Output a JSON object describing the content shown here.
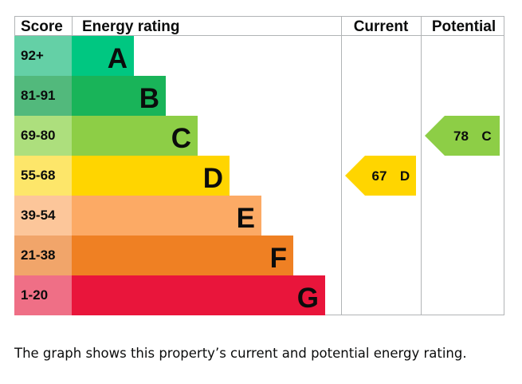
{
  "chart_data": {
    "type": "bar",
    "headers": {
      "score": "Score",
      "rating": "Energy rating",
      "current": "Current",
      "potential": "Potential"
    },
    "bands": [
      {
        "range": "92+",
        "letter": "A",
        "color": "#00c781",
        "score_bg": "#64d0a6",
        "value": 92
      },
      {
        "range": "81-91",
        "letter": "B",
        "color": "#19b459",
        "score_bg": "#52b97c",
        "value": 81
      },
      {
        "range": "69-80",
        "letter": "C",
        "color": "#8dce46",
        "score_bg": "#addf7d",
        "value": 69
      },
      {
        "range": "55-68",
        "letter": "D",
        "color": "#ffd500",
        "score_bg": "#fde66a",
        "value": 55
      },
      {
        "range": "39-54",
        "letter": "E",
        "color": "#fcaa65",
        "score_bg": "#fcc69a",
        "value": 39
      },
      {
        "range": "21-38",
        "letter": "F",
        "color": "#ef8023",
        "score_bg": "#f1a56a",
        "value": 21
      },
      {
        "range": "1-20",
        "letter": "G",
        "color": "#e9153b",
        "score_bg": "#ef6f86",
        "value": 1
      }
    ],
    "current": {
      "value": 67,
      "letter": "D",
      "color": "#ffd500"
    },
    "potential": {
      "value": 78,
      "letter": "C",
      "color": "#8dce46"
    }
  },
  "caption": "The graph shows this property’s current and potential energy rating."
}
